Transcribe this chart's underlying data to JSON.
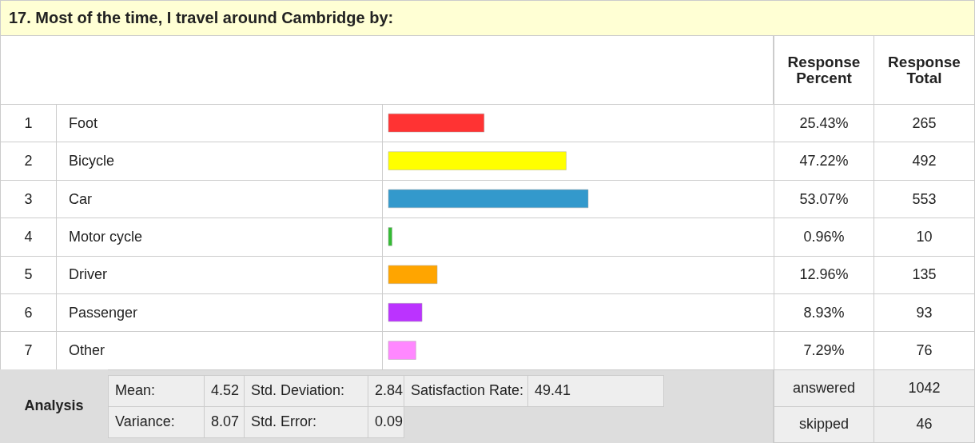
{
  "chart_data": {
    "type": "bar",
    "orientation": "horizontal",
    "title": "17. Most of the time, I travel around Cambridge by:",
    "categories": [
      "Foot",
      "Bicycle",
      "Car",
      "Motor cycle",
      "Driver",
      "Passenger",
      "Other"
    ],
    "values": [
      25.43,
      47.22,
      53.07,
      0.96,
      12.96,
      8.93,
      7.29
    ],
    "colors": [
      "#ff3333",
      "#ffff00",
      "#3399cc",
      "#33bb33",
      "#ffa500",
      "#bb33ff",
      "#ff88ff"
    ],
    "value_labels": [
      "25.43%",
      "47.22%",
      "53.07%",
      "0.96%",
      "12.96%",
      "8.93%",
      "7.29%"
    ],
    "annotations": [
      "Response Percent",
      "Response Total",
      "1",
      "2",
      "3",
      "4",
      "5",
      "6",
      "7",
      "265",
      "492",
      "553",
      "10",
      "135",
      "93",
      "76",
      "Analysis",
      "Mean:",
      "4.52",
      "Std. Deviation:",
      "2.84",
      "Satisfaction Rate:",
      "49.41",
      "Variance:",
      "8.07",
      "Std. Error:",
      "0.09",
      "answered",
      "1042",
      "skipped",
      "46"
    ]
  }
}
